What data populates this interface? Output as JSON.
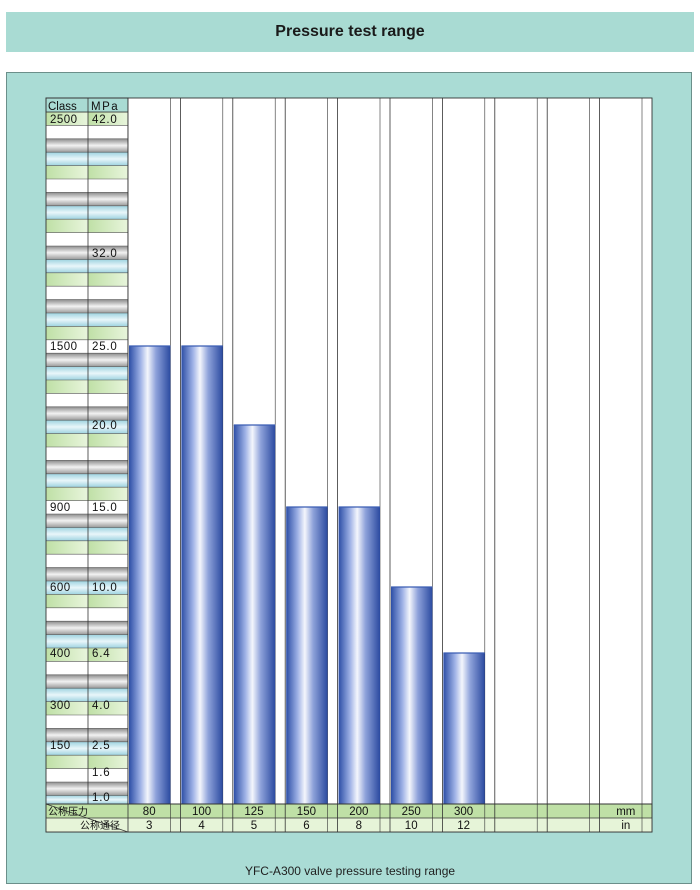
{
  "title": "Pressure test range",
  "caption": "YFC-A300 valve pressure testing range",
  "chart_data": {
    "type": "bar",
    "title": "Pressure test range",
    "y_header_class": "Class",
    "y_header_unit": "MPa",
    "ylim": [
      1.0,
      42.0
    ],
    "y_axis_labels": [
      {
        "class": "2500",
        "mpa": "42.0"
      },
      {
        "class": "",
        "mpa": "32.0"
      },
      {
        "class": "1500",
        "mpa": "25.0"
      },
      {
        "class": "",
        "mpa": "20.0"
      },
      {
        "class": "900",
        "mpa": "15.0"
      },
      {
        "class": "600",
        "mpa": "10.0"
      },
      {
        "class": "400",
        "mpa": "6.4"
      },
      {
        "class": "300",
        "mpa": "4.0"
      },
      {
        "class": "150",
        "mpa": "2.5"
      },
      {
        "class": "",
        "mpa": "1.6"
      },
      {
        "class": "",
        "mpa": "1.0"
      }
    ],
    "x_row1_label": "公称压力",
    "x_row2_label": "公称通径",
    "categories_mm": [
      "80",
      "100",
      "125",
      "150",
      "200",
      "250",
      "300",
      "",
      "",
      "mm"
    ],
    "categories_in": [
      "3",
      "4",
      "5",
      "6",
      "8",
      "10",
      "12",
      "",
      "",
      "in"
    ],
    "values": [
      25.0,
      25.0,
      20.0,
      15.0,
      15.0,
      10.0,
      6.4
    ],
    "bar_color": "#3b5db3",
    "grid": true
  }
}
